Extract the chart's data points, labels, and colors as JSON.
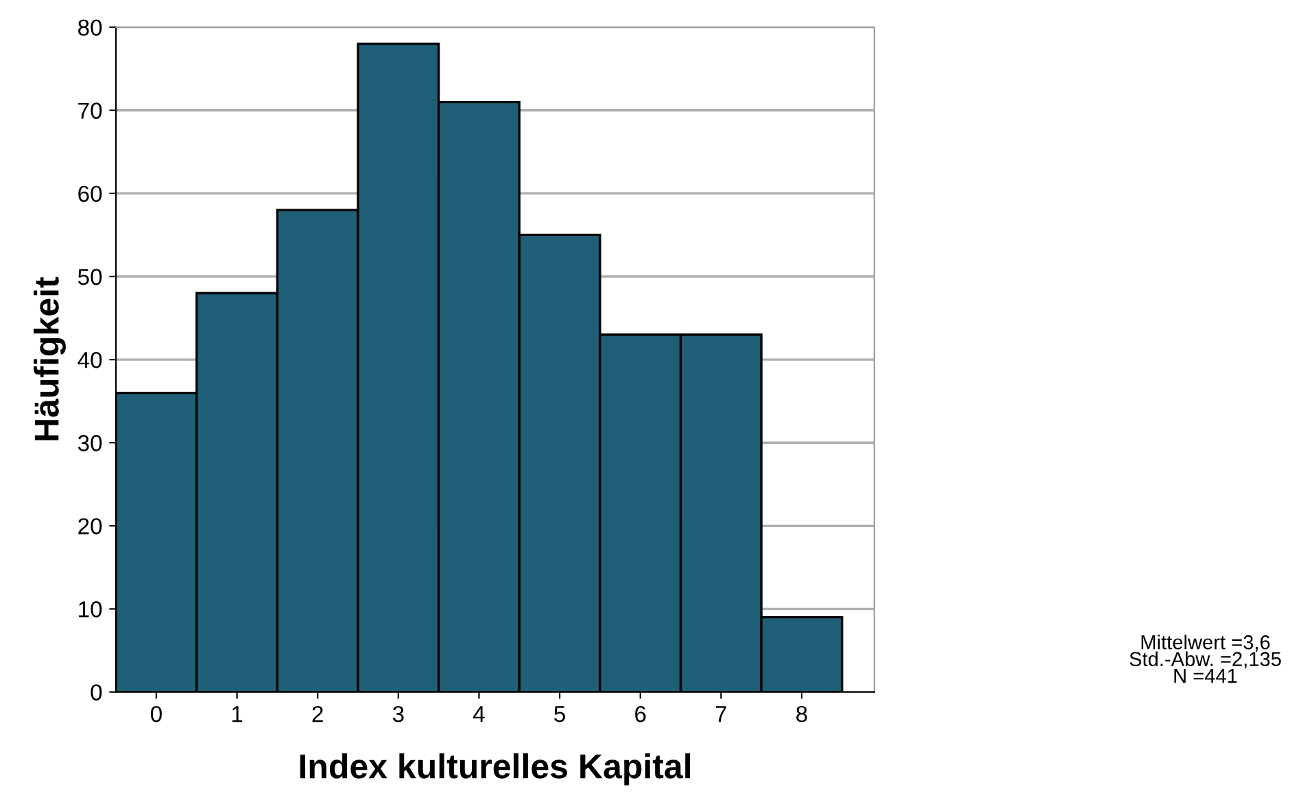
{
  "chart_data": {
    "type": "histogram",
    "xlabel": "Index kulturelles Kapital",
    "ylabel": "Häufigkeit",
    "bins": [
      -0.5,
      0.5,
      1.5,
      2.5,
      3.5,
      4.5,
      5.5,
      6.5,
      7.5,
      8.5
    ],
    "values": [
      36,
      48,
      58,
      78,
      71,
      55,
      43,
      43,
      9
    ],
    "color": "#1f5f78",
    "xlim": [
      -0.5,
      8.9
    ],
    "xticks": [
      0,
      1,
      2,
      3,
      4,
      5,
      6,
      7,
      8
    ],
    "ylim": [
      0,
      80
    ],
    "yticks": [
      0,
      10,
      20,
      30,
      40,
      50,
      60,
      70,
      80
    ],
    "grid": "y",
    "annotations": [
      "Mittelwert =3,6",
      "Std.-Abw. =2,135",
      "N =441"
    ]
  }
}
